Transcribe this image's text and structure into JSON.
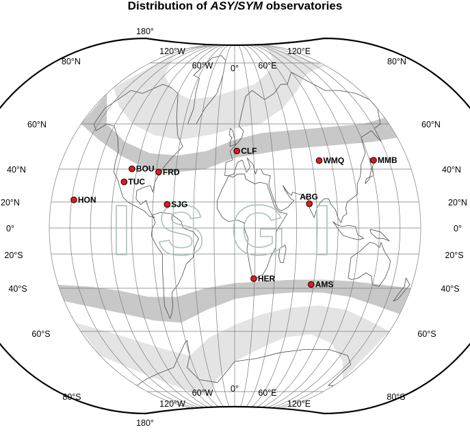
{
  "title": {
    "prefix": "Distribution of ",
    "emphasis": "ASY/SYM",
    "suffix": " observatories"
  },
  "watermark": "ISGI",
  "colors": {
    "dark_band": "#c8c8c8",
    "light_band": "#e4e4e4",
    "station": "#e81818",
    "grid": "#7a7a7a",
    "coast": "#4a4a4a",
    "watermark_stroke": "#a9c3bd"
  },
  "longitude_labels": {
    "top": [
      "180°",
      "120°W",
      "60°W",
      "0°",
      "60°E",
      "120°E"
    ],
    "bottom": [
      "60°W",
      "0°",
      "60°E",
      "120°W",
      "120°E",
      "180°"
    ]
  },
  "latitude_labels": {
    "left": [
      "80°N",
      "60°N",
      "40°N",
      "20°N",
      "0°",
      "20°S",
      "40°S",
      "60°S",
      "80°S"
    ],
    "right": [
      "80°N",
      "60°N",
      "40°N",
      "20°N",
      "0°",
      "20°S",
      "40°S",
      "60°S",
      "80°S"
    ]
  },
  "stations": [
    {
      "code": "BOU",
      "lon": -105.2,
      "lat": 40.1
    },
    {
      "code": "FRD",
      "lon": -77.4,
      "lat": 38.2
    },
    {
      "code": "TUC",
      "lon": -110.8,
      "lat": 32.2
    },
    {
      "code": "HON",
      "lon": -158.0,
      "lat": 21.3
    },
    {
      "code": "SJG",
      "lon": -66.1,
      "lat": 18.1
    },
    {
      "code": "CLF",
      "lon": 2.3,
      "lat": 48.0
    },
    {
      "code": "WMQ",
      "lon": 87.7,
      "lat": 43.8
    },
    {
      "code": "MMB",
      "lon": 144.2,
      "lat": 43.9
    },
    {
      "code": "ABG",
      "lon": 72.9,
      "lat": 18.6
    },
    {
      "code": "HER",
      "lon": 19.2,
      "lat": -34.4
    },
    {
      "code": "AMS",
      "lon": 77.6,
      "lat": -37.8
    }
  ]
}
